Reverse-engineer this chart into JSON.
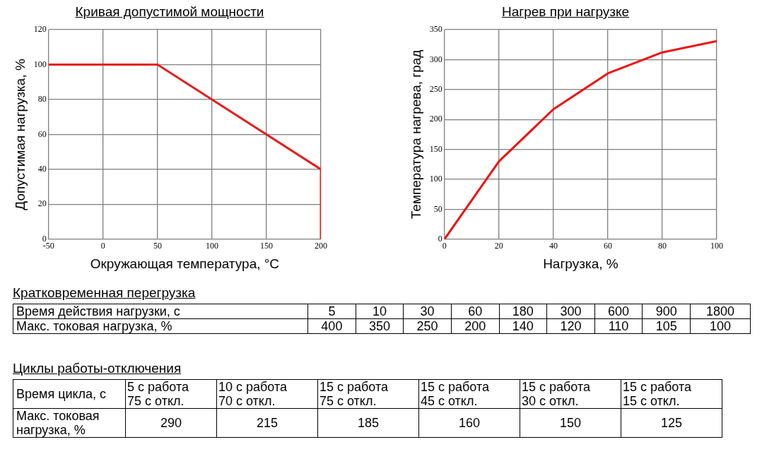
{
  "chart_data": [
    {
      "type": "line",
      "title": "Кривая допустимой мощности",
      "xlabel": "Окружающая температура, °C",
      "ylabel": "Допустимая нагрузка, %",
      "series": [
        {
          "color": "#e41e1e",
          "x": [
            -50,
            50,
            200,
            200
          ],
          "values": [
            100,
            100,
            40,
            0
          ]
        }
      ],
      "xlim": [
        -50,
        200
      ],
      "xticks": [
        -50,
        0,
        50,
        100,
        150,
        200
      ],
      "ylim": [
        0,
        120
      ],
      "yticks": [
        0,
        20,
        40,
        60,
        80,
        100,
        120
      ],
      "grid": true
    },
    {
      "type": "line",
      "title": "Нагрев при нагрузке",
      "xlabel": "Нагрузка, %",
      "ylabel": "Температура нагрева, град",
      "series": [
        {
          "color": "#f01010",
          "x": [
            0,
            20,
            40,
            60,
            80,
            100
          ],
          "values": [
            0,
            130,
            217,
            277,
            312,
            331
          ]
        }
      ],
      "xlim": [
        0,
        100
      ],
      "xticks": [
        0,
        20,
        40,
        60,
        80,
        100
      ],
      "ylim": [
        0,
        350
      ],
      "yticks": [
        0,
        50,
        100,
        150,
        200,
        250,
        300,
        350
      ],
      "grid": true
    },
    {
      "type": "other",
      "title": "Кратковременная перегрузка",
      "xlabel": "Время действия нагрузки, с",
      "categories": [
        "5",
        "10",
        "30",
        "60",
        "180",
        "300",
        "600",
        "900",
        "1800"
      ],
      "series": [
        {
          "name": "Макс. токовая нагрузка, %",
          "values": [
            400,
            350,
            250,
            200,
            140,
            120,
            110,
            105,
            100
          ]
        }
      ],
      "data_labels": true
    },
    {
      "type": "other",
      "title": "Циклы работы-отключения",
      "xlabel": "Время цикла, с",
      "categories": [
        "5 с работа\n75 с откл.",
        "10 с работа\n70 с откл.",
        "15 с работа\n75 с откл.",
        "15 с работа\n45 с откл.",
        "15 с работа\n30 с откл.",
        "15 с работа\n15 с откл."
      ],
      "series": [
        {
          "name": "Макс. токовая нагрузка, %",
          "values": [
            290,
            215,
            185,
            160,
            150,
            125
          ]
        }
      ],
      "data_labels": true
    }
  ]
}
